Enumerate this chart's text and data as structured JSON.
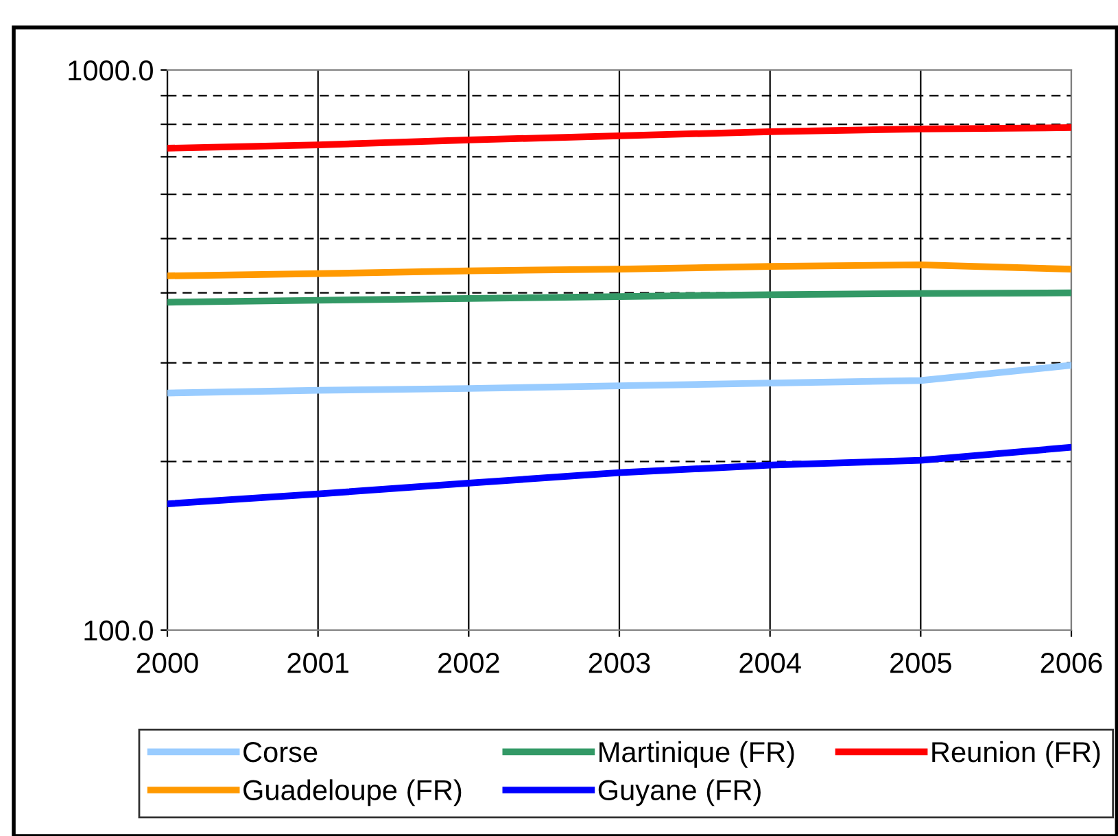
{
  "chart_data": {
    "type": "line",
    "x": [
      2000,
      2001,
      2002,
      2003,
      2004,
      2005,
      2006
    ],
    "series": [
      {
        "name": "Corse",
        "color": "#99ccff",
        "values": [
          265,
          268,
          270,
          273,
          276,
          279,
          297
        ]
      },
      {
        "name": "Guadeloupe (FR)",
        "color": "#ff9900",
        "values": [
          429,
          433,
          438,
          441,
          446,
          449,
          441
        ]
      },
      {
        "name": "Martinique (FR)",
        "color": "#339966",
        "values": [
          385,
          388,
          391,
          394,
          397,
          399,
          400
        ]
      },
      {
        "name": "Guyane (FR)",
        "color": "#0000ff",
        "values": [
          168,
          175,
          183,
          191,
          197,
          201,
          212
        ]
      },
      {
        "name": "Reunion (FR)",
        "color": "#ff0000",
        "values": [
          725,
          735,
          750,
          763,
          776,
          785,
          789
        ]
      }
    ],
    "log": "y",
    "xlim": [
      2000,
      2006
    ],
    "xticks": [
      2000,
      2001,
      2002,
      2003,
      2004,
      2005,
      2006
    ],
    "ylim": [
      100,
      1000
    ],
    "yticks": [
      {
        "value": 100,
        "label": "100.0"
      },
      {
        "value": 200,
        "label": null
      },
      {
        "value": 300,
        "label": null
      },
      {
        "value": 400,
        "label": null
      },
      {
        "value": 500,
        "label": null
      },
      {
        "value": 600,
        "label": null
      },
      {
        "value": 700,
        "label": null
      },
      {
        "value": 800,
        "label": null
      },
      {
        "value": 900,
        "label": null
      },
      {
        "value": 1000,
        "label": "1000.0"
      }
    ],
    "grid": true,
    "legend": "bottom",
    "marker": "none",
    "line_style": "solid"
  }
}
